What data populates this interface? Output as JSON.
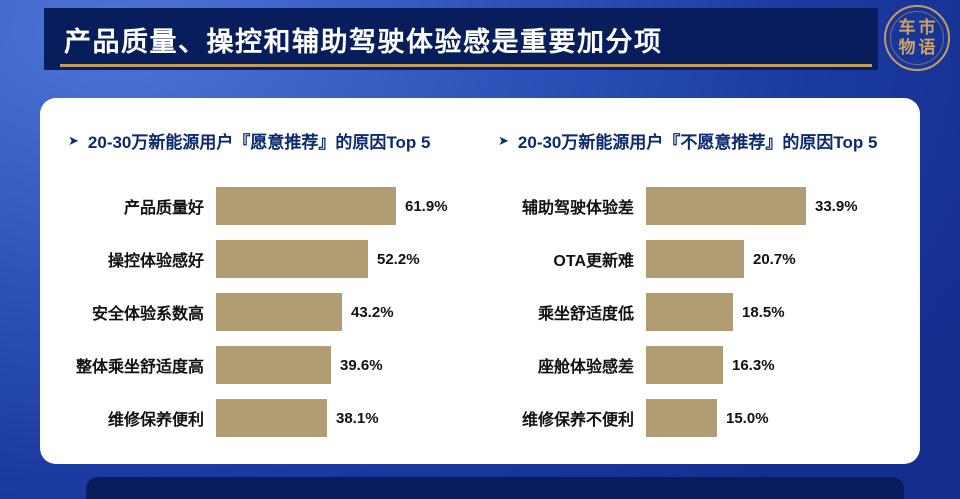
{
  "header": {
    "title": "产品质量、操控和辅助驾驶体验感是重要加分项"
  },
  "logo": {
    "line1": "车市",
    "line2": "物语"
  },
  "colors": {
    "header_bg": "#081d5b",
    "accent_gold": "#c39d5e",
    "bar_fill": "#b29c72",
    "title_navy": "#0c2a6e",
    "background_blue": "#2d53ba"
  },
  "marker": {
    "arrow": "➤"
  },
  "chart_data": [
    {
      "type": "bar",
      "orientation": "horizontal",
      "title": "20-30万新能源用户『愿意推荐』的原因Top 5",
      "categories": [
        "产品质量好",
        "操控体验感好",
        "安全体验系数高",
        "整体乘坐舒适度高",
        "维修保养便利"
      ],
      "values": [
        61.9,
        52.2,
        43.2,
        39.6,
        38.1
      ],
      "value_labels": [
        "61.9%",
        "52.2%",
        "43.2%",
        "39.6%",
        "38.1%"
      ],
      "xlim": [
        0,
        65
      ],
      "grid": false,
      "value_label_position": "outside-end"
    },
    {
      "type": "bar",
      "orientation": "horizontal",
      "title": "20-30万新能源用户『不愿意推荐』的原因Top 5",
      "categories": [
        "辅助驾驶体验差",
        "OTA更新难",
        "乘坐舒适度低",
        "座舱体验感差",
        "维修保养不便利"
      ],
      "values": [
        33.9,
        20.7,
        18.5,
        16.3,
        15.0
      ],
      "value_labels": [
        "33.9%",
        "20.7%",
        "18.5%",
        "16.3%",
        "15.0%"
      ],
      "xlim": [
        0,
        38
      ],
      "grid": false,
      "value_label_position": "outside-end"
    }
  ]
}
